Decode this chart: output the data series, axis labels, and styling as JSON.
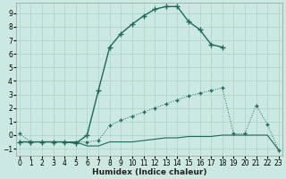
{
  "xlabel": "Humidex (Indice chaleur)",
  "bg_color": "#cce8e2",
  "grid_color": "#aad4c8",
  "line_color": "#1a6b58",
  "xlim": [
    -0.3,
    23.3
  ],
  "ylim": [
    -1.5,
    9.8
  ],
  "yticks": [
    -1,
    0,
    1,
    2,
    3,
    4,
    5,
    6,
    7,
    8,
    9
  ],
  "xticks": [
    0,
    1,
    2,
    3,
    4,
    5,
    6,
    7,
    8,
    9,
    10,
    11,
    12,
    13,
    14,
    15,
    16,
    17,
    18,
    19,
    20,
    21,
    22,
    23
  ],
  "curve1_x": [
    0,
    1,
    2,
    3,
    4,
    5,
    6,
    7,
    8,
    9,
    10,
    11,
    12,
    13,
    14,
    15,
    16,
    17,
    18
  ],
  "curve1_y": [
    -0.5,
    -0.5,
    -0.5,
    -0.5,
    -0.5,
    -0.6,
    0.0,
    3.3,
    6.5,
    7.5,
    8.2,
    8.8,
    9.3,
    9.5,
    9.5,
    8.4,
    7.8,
    6.7,
    6.5
  ],
  "curve2_x": [
    0,
    1,
    2,
    3,
    4,
    5,
    6,
    7,
    8,
    9,
    10,
    11,
    12,
    13,
    14,
    15,
    16,
    17,
    18,
    19,
    20,
    21,
    22,
    23
  ],
  "curve2_y": [
    0.1,
    -0.5,
    -0.5,
    -0.5,
    -0.5,
    -0.5,
    -0.5,
    -0.4,
    0.7,
    1.1,
    1.4,
    1.7,
    2.0,
    2.3,
    2.6,
    2.9,
    3.1,
    3.3,
    3.5,
    0.1,
    0.1,
    2.2,
    0.8,
    -1.1
  ],
  "curve3_x": [
    0,
    1,
    2,
    3,
    4,
    5,
    6,
    7,
    8,
    9,
    10,
    11,
    12,
    13,
    14,
    15,
    16,
    17,
    18,
    19,
    20,
    21,
    22,
    23
  ],
  "curve3_y": [
    -0.5,
    -0.5,
    -0.5,
    -0.5,
    -0.5,
    -0.5,
    -0.8,
    -0.8,
    -0.5,
    -0.5,
    -0.5,
    -0.4,
    -0.3,
    -0.2,
    -0.2,
    -0.1,
    -0.1,
    -0.1,
    0.0,
    0.0,
    0.0,
    0.0,
    0.0,
    -1.1
  ],
  "tick_fontsize": 5.5,
  "label_fontsize": 6.5
}
